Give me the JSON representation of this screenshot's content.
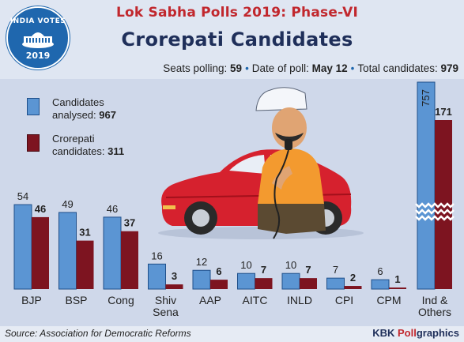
{
  "header": {
    "logo_top": "INDIA VOTES",
    "logo_year": "2019",
    "title": "Lok Sabha Polls 2019: Phase-VI",
    "subtitle": "Crorepati Candidates"
  },
  "info": {
    "seats_label": "Seats polling:",
    "seats_value": "59",
    "date_label": "Date of poll:",
    "date_value": "May 12",
    "total_label": "Total candidates:",
    "total_value": "979"
  },
  "legend": {
    "analysed_line1": "Candidates",
    "analysed_line2": "analysed:",
    "analysed_value": "967",
    "crorepati_line1": "Crorepati",
    "crorepati_line2": "candidates:",
    "crorepati_value": "311"
  },
  "colors": {
    "analysed": "#5b95d3",
    "crorepati": "#7d1420"
  },
  "chart_data": {
    "type": "bar",
    "categories": [
      "BJP",
      "BSP",
      "Cong",
      "Shiv Sena",
      "AAP",
      "AITC",
      "INLD",
      "CPI",
      "CPM",
      "Ind & Others"
    ],
    "series": [
      {
        "name": "Candidates analysed",
        "values": [
          54,
          49,
          46,
          16,
          12,
          10,
          10,
          7,
          6,
          757
        ]
      },
      {
        "name": "Crorepati candidates",
        "values": [
          46,
          31,
          37,
          3,
          6,
          7,
          7,
          2,
          1,
          171
        ]
      }
    ],
    "axis_break": "Ind & Others bars drawn with a broken scale",
    "legend_position": "top-left",
    "grid": false
  },
  "footer": {
    "source": "Source: Association for Democratic Reforms",
    "brand_a": "KBK ",
    "brand_b": "Poll",
    "brand_c": "graphics"
  }
}
